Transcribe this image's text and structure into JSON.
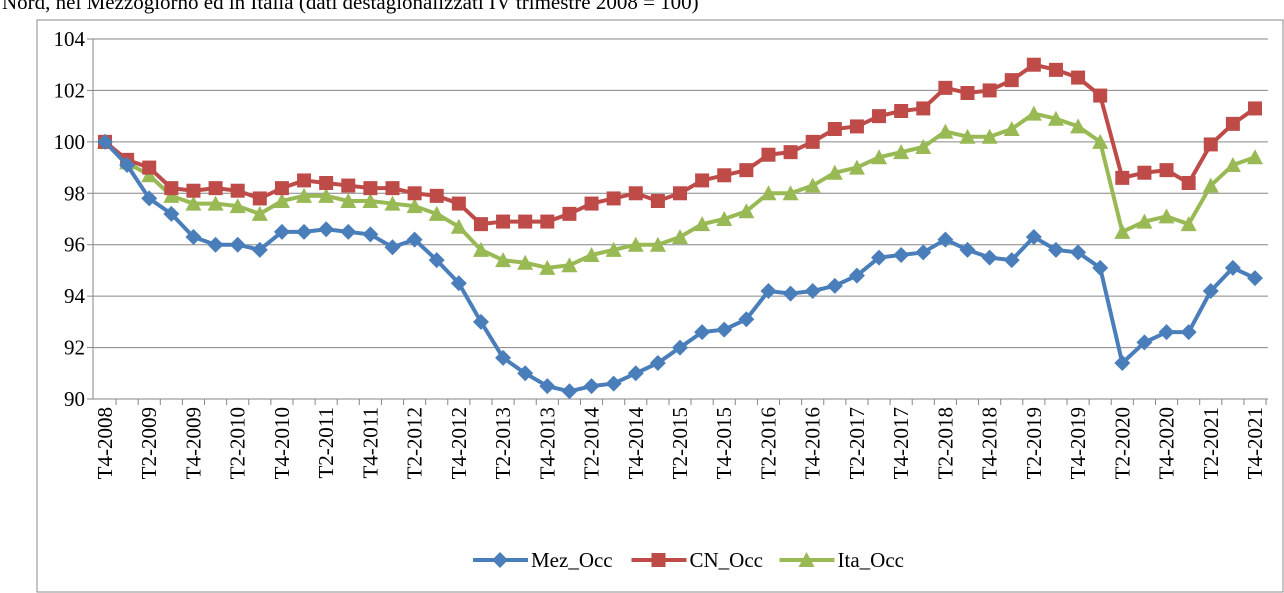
{
  "chart_data": {
    "type": "line",
    "title": "Nord, nel Mezzogiorno ed in Italia (dati destagionalizzati IV trimestre 2008 = 100)",
    "categories": [
      "T4-2008",
      null,
      "T2-2009",
      null,
      "T4-2009",
      null,
      "T2-2010",
      null,
      "T4-2010",
      null,
      "T2-2011",
      null,
      "T4-2011",
      null,
      "T2-2012",
      null,
      "T4-2012",
      null,
      "T2-2013",
      null,
      "T4-2013",
      null,
      "T2-2014",
      null,
      "T4-2014",
      null,
      "T2-2015",
      null,
      "T4-2015",
      null,
      "T2-2016",
      null,
      "T4-2016",
      null,
      "T2-2017",
      null,
      "T4-2017",
      null,
      "T2-2018",
      null,
      "T4-2018",
      null,
      "T2-2019",
      null,
      "T4-2019",
      null,
      "T2-2020",
      null,
      "T4-2020",
      null,
      "T2-2021",
      null,
      "T4-2021"
    ],
    "series": [
      {
        "name": "Mez_Occ",
        "color": "#4a7ebb",
        "marker": "diamond",
        "values": [
          100,
          99.1,
          97.8,
          97.2,
          96.3,
          96.0,
          96.0,
          95.8,
          96.5,
          96.5,
          96.6,
          96.5,
          96.4,
          95.9,
          96.2,
          95.4,
          94.5,
          93.0,
          91.6,
          91.0,
          90.5,
          90.3,
          90.5,
          90.6,
          91.0,
          91.4,
          92.0,
          92.6,
          92.7,
          93.1,
          94.2,
          94.1,
          94.2,
          94.4,
          94.8,
          95.5,
          95.6,
          95.7,
          96.2,
          95.8,
          95.5,
          95.4,
          96.3,
          95.8,
          95.7,
          95.1,
          91.4,
          92.2,
          92.6,
          92.6,
          94.2,
          95.1,
          94.7
        ]
      },
      {
        "name": "CN_Occ",
        "color": "#be4b48",
        "marker": "square",
        "values": [
          100,
          99.3,
          99.0,
          98.2,
          98.1,
          98.2,
          98.1,
          97.8,
          98.2,
          98.5,
          98.4,
          98.3,
          98.2,
          98.2,
          98.0,
          97.9,
          97.6,
          96.8,
          96.9,
          96.9,
          96.9,
          97.2,
          97.6,
          97.8,
          98.0,
          97.7,
          98.0,
          98.5,
          98.7,
          98.9,
          99.5,
          99.6,
          100.0,
          100.5,
          100.6,
          101.0,
          101.2,
          101.3,
          102.1,
          101.9,
          102.0,
          102.4,
          103.0,
          102.8,
          102.5,
          101.8,
          98.6,
          98.8,
          98.9,
          98.4,
          99.9,
          100.7,
          101.3
        ]
      },
      {
        "name": "Ita_Occ",
        "color": "#98b954",
        "marker": "triangle",
        "values": [
          100,
          99.2,
          98.7,
          97.9,
          97.6,
          97.6,
          97.5,
          97.2,
          97.7,
          97.9,
          97.9,
          97.7,
          97.7,
          97.6,
          97.5,
          97.2,
          96.7,
          95.8,
          95.4,
          95.3,
          95.1,
          95.2,
          95.6,
          95.8,
          96.0,
          96.0,
          96.3,
          96.8,
          97.0,
          97.3,
          98.0,
          98.0,
          98.3,
          98.8,
          99.0,
          99.4,
          99.6,
          99.8,
          100.4,
          100.2,
          100.2,
          100.5,
          101.1,
          100.9,
          100.6,
          100.0,
          96.5,
          96.9,
          97.1,
          96.8,
          98.3,
          99.1,
          99.4
        ]
      }
    ],
    "ylim": [
      90,
      104
    ],
    "yticks": [
      90,
      92,
      94,
      96,
      98,
      100,
      102,
      104
    ],
    "grid": true,
    "legend": "bottom"
  }
}
